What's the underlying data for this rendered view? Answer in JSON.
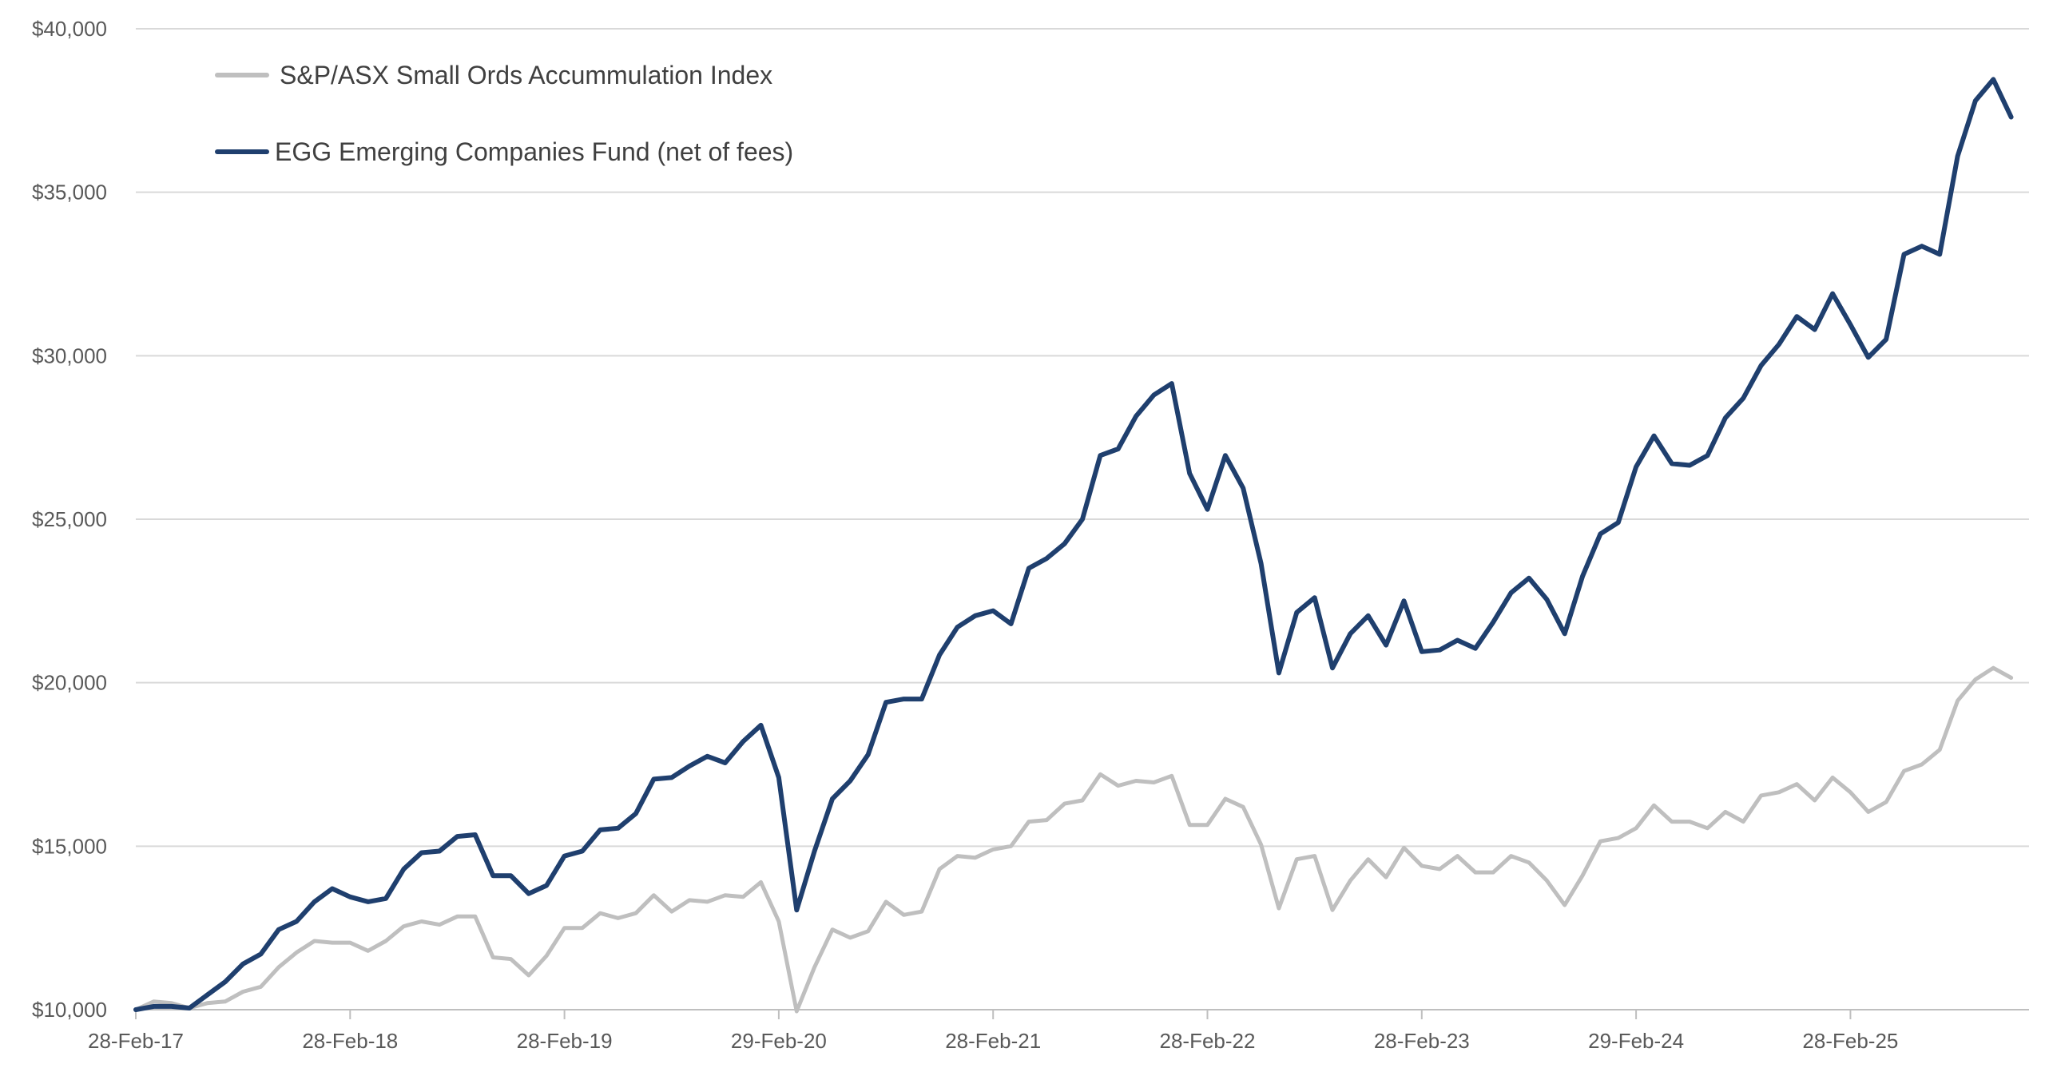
{
  "chart_data": {
    "type": "line",
    "title": "",
    "xlabel": "",
    "ylabel": "",
    "ylim": [
      10000,
      40000
    ],
    "y_ticks": [
      10000,
      15000,
      20000,
      25000,
      30000,
      35000,
      40000
    ],
    "y_tick_labels": [
      "$10,000",
      "$15,000",
      "$20,000",
      "$25,000",
      "$30,000",
      "$35,000",
      "$40,000"
    ],
    "x_tick_labels": [
      "28-Feb-17",
      "28-Feb-18",
      "28-Feb-19",
      "29-Feb-20",
      "28-Feb-21",
      "28-Feb-22",
      "28-Feb-23",
      "29-Feb-24",
      "28-Feb-25"
    ],
    "x_tick_month_index": [
      0,
      12,
      24,
      36,
      48,
      60,
      72,
      84,
      96
    ],
    "x_domain_months": [
      0,
      106
    ],
    "grid": true,
    "legend_position": "top-left",
    "series": [
      {
        "name": "S&P/ASX Small Ords Accummulation Index",
        "color": "#BFBFBF",
        "values": [
          10000,
          10250,
          10200,
          10050,
          10200,
          10250,
          10550,
          10700,
          11300,
          11750,
          12100,
          12050,
          12050,
          11800,
          12100,
          12550,
          12700,
          12600,
          12850,
          12850,
          11600,
          11550,
          11050,
          11650,
          12500,
          12500,
          12950,
          12800,
          12950,
          13500,
          13000,
          13350,
          13300,
          13500,
          13450,
          13900,
          12700,
          9950,
          11300,
          12450,
          12200,
          12400,
          13300,
          12900,
          13000,
          14300,
          14700,
          14650,
          14900,
          15000,
          15750,
          15800,
          16300,
          16400,
          17200,
          16850,
          17000,
          16950,
          17150,
          15650,
          15650,
          16450,
          16200,
          15050,
          13100,
          14600,
          14700,
          13050,
          13950,
          14600,
          14050,
          14950,
          14400,
          14300,
          14700,
          14200,
          14200,
          14700,
          14500,
          13950,
          13200,
          14100,
          15150,
          15250,
          15550,
          16250,
          15750,
          15750,
          15550,
          16050,
          15750,
          16550,
          16650,
          16900,
          16400,
          17100,
          16650,
          16050,
          16350,
          17300,
          17500,
          17950,
          19450,
          20100,
          20450,
          20150
        ]
      },
      {
        "name": "EGG Emerging Companies Fund (net of fees)",
        "color": "#1F3F6E",
        "values": [
          10000,
          10100,
          10100,
          10050,
          10450,
          10850,
          11400,
          11700,
          12450,
          12700,
          13300,
          13700,
          13450,
          13300,
          13400,
          14300,
          14800,
          14850,
          15300,
          15350,
          14100,
          14100,
          13550,
          13800,
          14700,
          14850,
          15500,
          15550,
          16000,
          17050,
          17100,
          17450,
          17750,
          17550,
          18200,
          18700,
          17100,
          13050,
          14850,
          16450,
          17000,
          17800,
          19400,
          19500,
          19500,
          20850,
          21700,
          22050,
          22200,
          21800,
          23500,
          23800,
          24250,
          25000,
          26950,
          27150,
          28150,
          28800,
          29150,
          26400,
          25300,
          26950,
          25950,
          23650,
          20300,
          22150,
          22600,
          20450,
          21500,
          22050,
          21150,
          22500,
          20950,
          21000,
          21300,
          21050,
          21850,
          22750,
          23200,
          22550,
          21500,
          23250,
          24550,
          24900,
          26600,
          27550,
          26700,
          26650,
          26950,
          28100,
          28700,
          29700,
          30350,
          31200,
          30800,
          31900,
          30950,
          29950,
          30500,
          33100,
          33350,
          33100,
          36100,
          37800,
          38450,
          37300
        ]
      }
    ]
  }
}
